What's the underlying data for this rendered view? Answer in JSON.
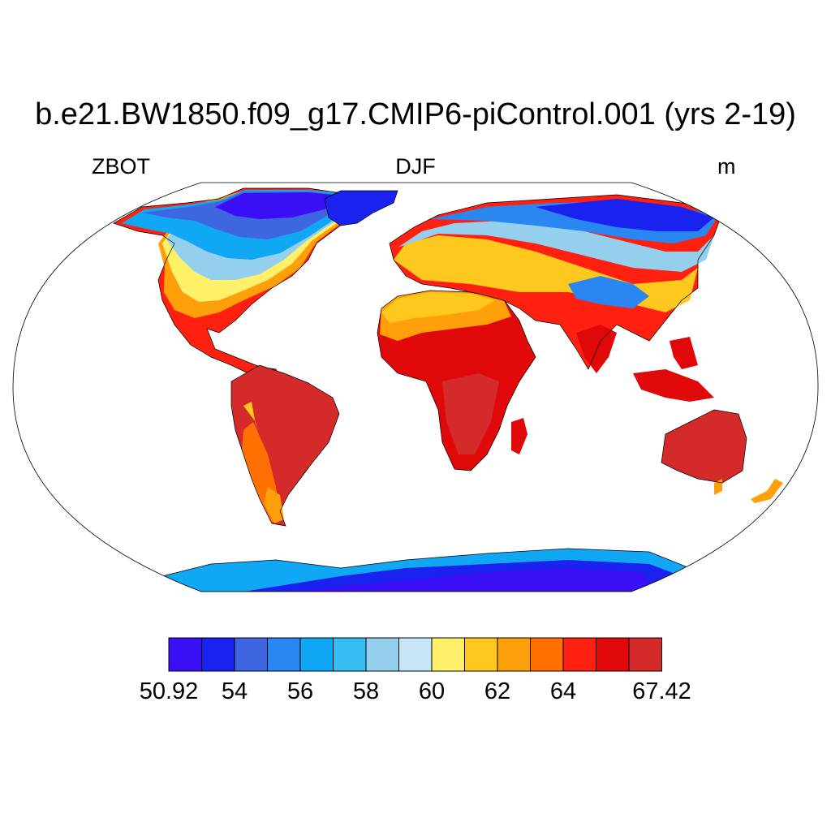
{
  "title": "b.e21.BW1850.f09_g17.CMIP6-piControl.001 (yrs 2-19)",
  "variable": "ZBOT",
  "season": "DJF",
  "units": "m",
  "colorbar": {
    "colors": [
      "#3b0ff5",
      "#1a22f0",
      "#3e66e0",
      "#2a86f0",
      "#10a8f5",
      "#36bef2",
      "#94cfee",
      "#c8e6f7",
      "#fff06a",
      "#ffc81e",
      "#ffa00a",
      "#ff7000",
      "#ff2010",
      "#e00808",
      "#d42a2a"
    ],
    "tick_labels": [
      "50.92",
      "54",
      "56",
      "58",
      "60",
      "62",
      "64",
      "67.42"
    ],
    "tick_boundaries": [
      0,
      2,
      4,
      6,
      8,
      10,
      12,
      15
    ]
  },
  "map": {
    "projection": "Robinson",
    "ocean_color": "#ffffff",
    "coastline_color": "#000000"
  }
}
